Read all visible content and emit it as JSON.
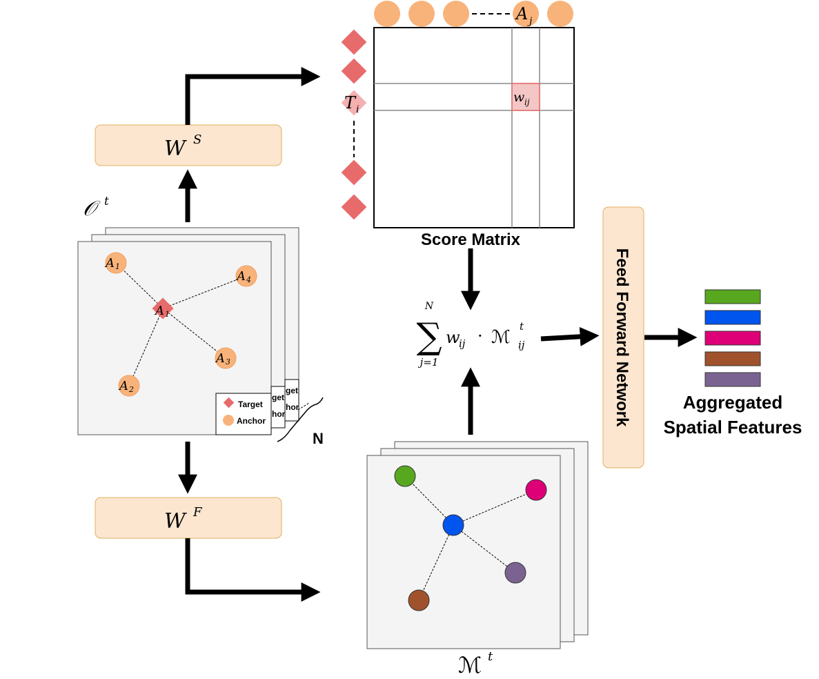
{
  "colors": {
    "anchor": "#F8B37A",
    "target": "#E86B6B",
    "box_fill": "#FCE6CF",
    "box_stroke": "#E0B060",
    "panel_fill": "#F4F4F4",
    "highlight_cell": "#F4C6C6",
    "features": [
      "#58A81F",
      "#0055EE",
      "#DD0077",
      "#A0522D",
      "#7B6391"
    ]
  },
  "labels": {
    "ws_main": "W",
    "ws_sup": "S",
    "wf_main": "W",
    "wf_sup": "F",
    "obs_main": "𝒪",
    "obs_sup": "t",
    "mem_main": "ℳ",
    "mem_sup": "t",
    "aj_main": "A",
    "aj_sub": "j",
    "ti_main": "T",
    "ti_sub": "i",
    "wij_main": "w",
    "wij_sub": "ij",
    "score_matrix": "Score Matrix",
    "ffn": "Feed Forward Network",
    "agg_line1": "Aggregated",
    "agg_line2": "Spatial Features",
    "n_label": "N",
    "legend_target": "Target",
    "legend_anchor": "Anchor",
    "legend_back_target": "get",
    "legend_back_anchor": "hor"
  },
  "graph_nodes": {
    "a1": {
      "main": "A",
      "sub": "1"
    },
    "a4": {
      "main": "A",
      "sub": "4"
    },
    "a3": {
      "main": "A",
      "sub": "3"
    },
    "a2": {
      "main": "A",
      "sub": "2"
    },
    "center": {
      "main": "A",
      "sub": "1"
    }
  },
  "formula": {
    "sum": "∑",
    "upper": "N",
    "lower": "j=1",
    "w": "w",
    "w_sub": "ij",
    "dot": "·",
    "m": "ℳ",
    "m_sup": "t",
    "m_sub": "ij"
  }
}
